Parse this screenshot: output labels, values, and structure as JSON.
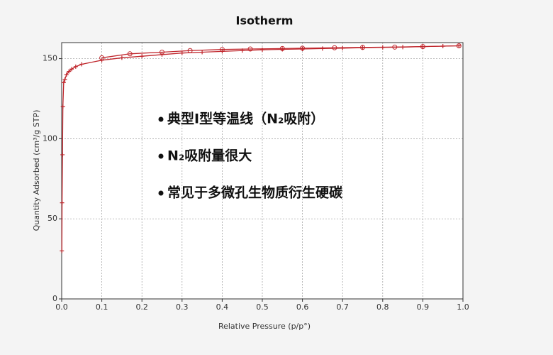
{
  "chart_data": {
    "type": "line",
    "title": "Isotherm",
    "x_label": "Relative Pressure (p/p°)",
    "y_label": "Quantity Adsorbed (cm³/g STP)",
    "xlim": [
      0,
      1
    ],
    "ylim": [
      0,
      160
    ],
    "xticks": [
      {
        "value": 0,
        "label": "0.0"
      },
      0.1,
      0.2,
      0.3,
      0.4,
      0.5,
      0.6,
      0.7,
      0.8,
      0.9,
      {
        "value": 1,
        "label": "1.0"
      }
    ],
    "yticks": [
      0,
      50,
      100,
      150
    ],
    "grid": true,
    "series": [
      {
        "color": "#c0272d",
        "marker": "plus",
        "x": [
          0.0005,
          0.001,
          0.002,
          0.003,
          0.005,
          0.008,
          0.012,
          0.018,
          0.025,
          0.035,
          0.05,
          0.1,
          0.15,
          0.2,
          0.25,
          0.3,
          0.35,
          0.4,
          0.45,
          0.5,
          0.55,
          0.6,
          0.65,
          0.7,
          0.75,
          0.8,
          0.85,
          0.9,
          0.95,
          0.99
        ],
        "values": [
          30,
          60,
          90,
          120,
          135,
          137,
          140,
          142,
          143.5,
          145,
          146.5,
          149,
          150.5,
          151.5,
          152.5,
          153.5,
          154,
          154.5,
          155,
          155.5,
          155.8,
          156,
          156.3,
          156.5,
          156.8,
          157,
          157.2,
          157.5,
          157.8,
          158
        ]
      },
      {
        "color": "#c0272d",
        "marker": "circle",
        "x": [
          0.99,
          0.9,
          0.83,
          0.75,
          0.68,
          0.6,
          0.55,
          0.47,
          0.4,
          0.32,
          0.25,
          0.17,
          0.1
        ],
        "values": [
          158,
          157.5,
          157.2,
          157,
          156.8,
          156.5,
          156.3,
          156,
          155.7,
          155,
          154,
          153,
          150.5
        ]
      }
    ],
    "annotations": [
      "典型I型等温线（N₂吸附）",
      "N₂吸附量很大",
      "常见于多微孔生物质衍生硬碳"
    ]
  }
}
